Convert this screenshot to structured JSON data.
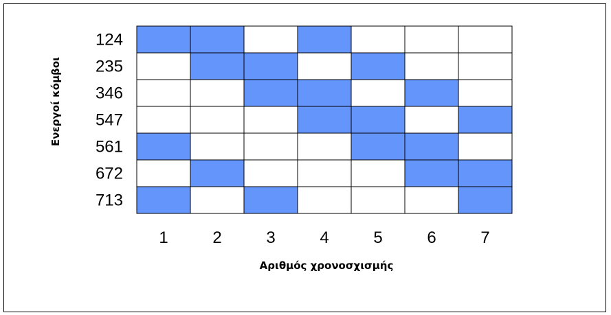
{
  "chart_data": {
    "type": "heatmap",
    "xlabel": "Αριθμός χρονοσχισμής",
    "ylabel": "Ενεργοί κόμβοι",
    "rows": [
      "124",
      "235",
      "346",
      "547",
      "561",
      "672",
      "713"
    ],
    "columns": [
      "1",
      "2",
      "3",
      "4",
      "5",
      "6",
      "7"
    ],
    "values": [
      [
        1,
        1,
        0,
        1,
        0,
        0,
        0
      ],
      [
        0,
        1,
        1,
        0,
        1,
        0,
        0
      ],
      [
        0,
        0,
        1,
        1,
        0,
        1,
        0
      ],
      [
        0,
        0,
        0,
        1,
        1,
        0,
        1
      ],
      [
        1,
        0,
        0,
        0,
        1,
        1,
        0
      ],
      [
        0,
        1,
        0,
        0,
        0,
        1,
        1
      ],
      [
        1,
        0,
        1,
        0,
        0,
        0,
        1
      ]
    ],
    "colors": {
      "active": "#6495FB",
      "inactive": "#FFFFFF",
      "grid": "#000000"
    }
  }
}
